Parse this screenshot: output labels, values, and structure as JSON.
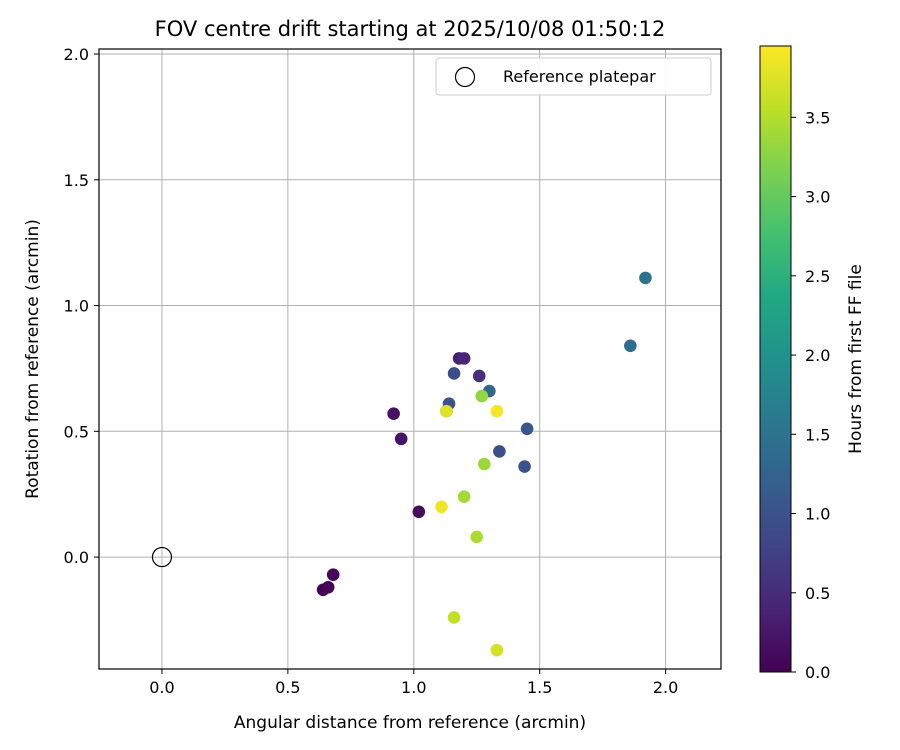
{
  "chart_data": {
    "type": "scatter",
    "title": "FOV centre drift starting at 2025/10/08 01:50:12",
    "xlabel": "Angular distance from reference (arcmin)",
    "ylabel": "Rotation from reference (arcmin)",
    "xlim": [
      -0.25,
      2.22
    ],
    "ylim": [
      -0.445,
      2.02
    ],
    "xticks": [
      "0.0",
      "0.5",
      "1.0",
      "1.5",
      "2.0"
    ],
    "yticks": [
      "0.0",
      "0.5",
      "1.0",
      "1.5",
      "2.0"
    ],
    "grid": true,
    "legend": {
      "label": "Reference platepar",
      "position": "top-right"
    },
    "reference_point": {
      "x": 0.0,
      "y": 0.0
    },
    "colorbar": {
      "label": "Hours from first FF file",
      "colormap": "viridis",
      "range": [
        0.0,
        3.95
      ],
      "ticks": [
        "0.0",
        "0.5",
        "1.0",
        "1.5",
        "2.0",
        "2.5",
        "3.0",
        "3.5"
      ]
    },
    "points": [
      {
        "x": 0.64,
        "y": -0.13,
        "hours": 0.02
      },
      {
        "x": 0.66,
        "y": -0.12,
        "hours": 0.05
      },
      {
        "x": 0.68,
        "y": -0.07,
        "hours": 0.08
      },
      {
        "x": 1.02,
        "y": 0.18,
        "hours": 0.12
      },
      {
        "x": 0.92,
        "y": 0.57,
        "hours": 0.18
      },
      {
        "x": 0.95,
        "y": 0.47,
        "hours": 0.22
      },
      {
        "x": 1.18,
        "y": 0.79,
        "hours": 0.35
      },
      {
        "x": 1.2,
        "y": 0.79,
        "hours": 0.45
      },
      {
        "x": 1.26,
        "y": 0.72,
        "hours": 0.55
      },
      {
        "x": 1.16,
        "y": 0.73,
        "hours": 0.9
      },
      {
        "x": 1.14,
        "y": 0.61,
        "hours": 1.0
      },
      {
        "x": 1.13,
        "y": 0.58,
        "hours": 1.05
      },
      {
        "x": 1.34,
        "y": 0.42,
        "hours": 0.95
      },
      {
        "x": 1.44,
        "y": 0.36,
        "hours": 1.0
      },
      {
        "x": 1.45,
        "y": 0.51,
        "hours": 1.05
      },
      {
        "x": 1.3,
        "y": 0.66,
        "hours": 1.3
      },
      {
        "x": 1.86,
        "y": 0.84,
        "hours": 1.4
      },
      {
        "x": 1.92,
        "y": 1.11,
        "hours": 1.5
      },
      {
        "x": 1.27,
        "y": 0.64,
        "hours": 3.3
      },
      {
        "x": 1.28,
        "y": 0.37,
        "hours": 3.35
      },
      {
        "x": 1.2,
        "y": 0.24,
        "hours": 3.4
      },
      {
        "x": 1.25,
        "y": 0.08,
        "hours": 3.45
      },
      {
        "x": 1.16,
        "y": -0.24,
        "hours": 3.6
      },
      {
        "x": 1.33,
        "y": -0.37,
        "hours": 3.7
      },
      {
        "x": 1.13,
        "y": 0.58,
        "hours": 3.75
      },
      {
        "x": 1.11,
        "y": 0.2,
        "hours": 3.85
      },
      {
        "x": 1.33,
        "y": 0.58,
        "hours": 3.9
      }
    ]
  }
}
